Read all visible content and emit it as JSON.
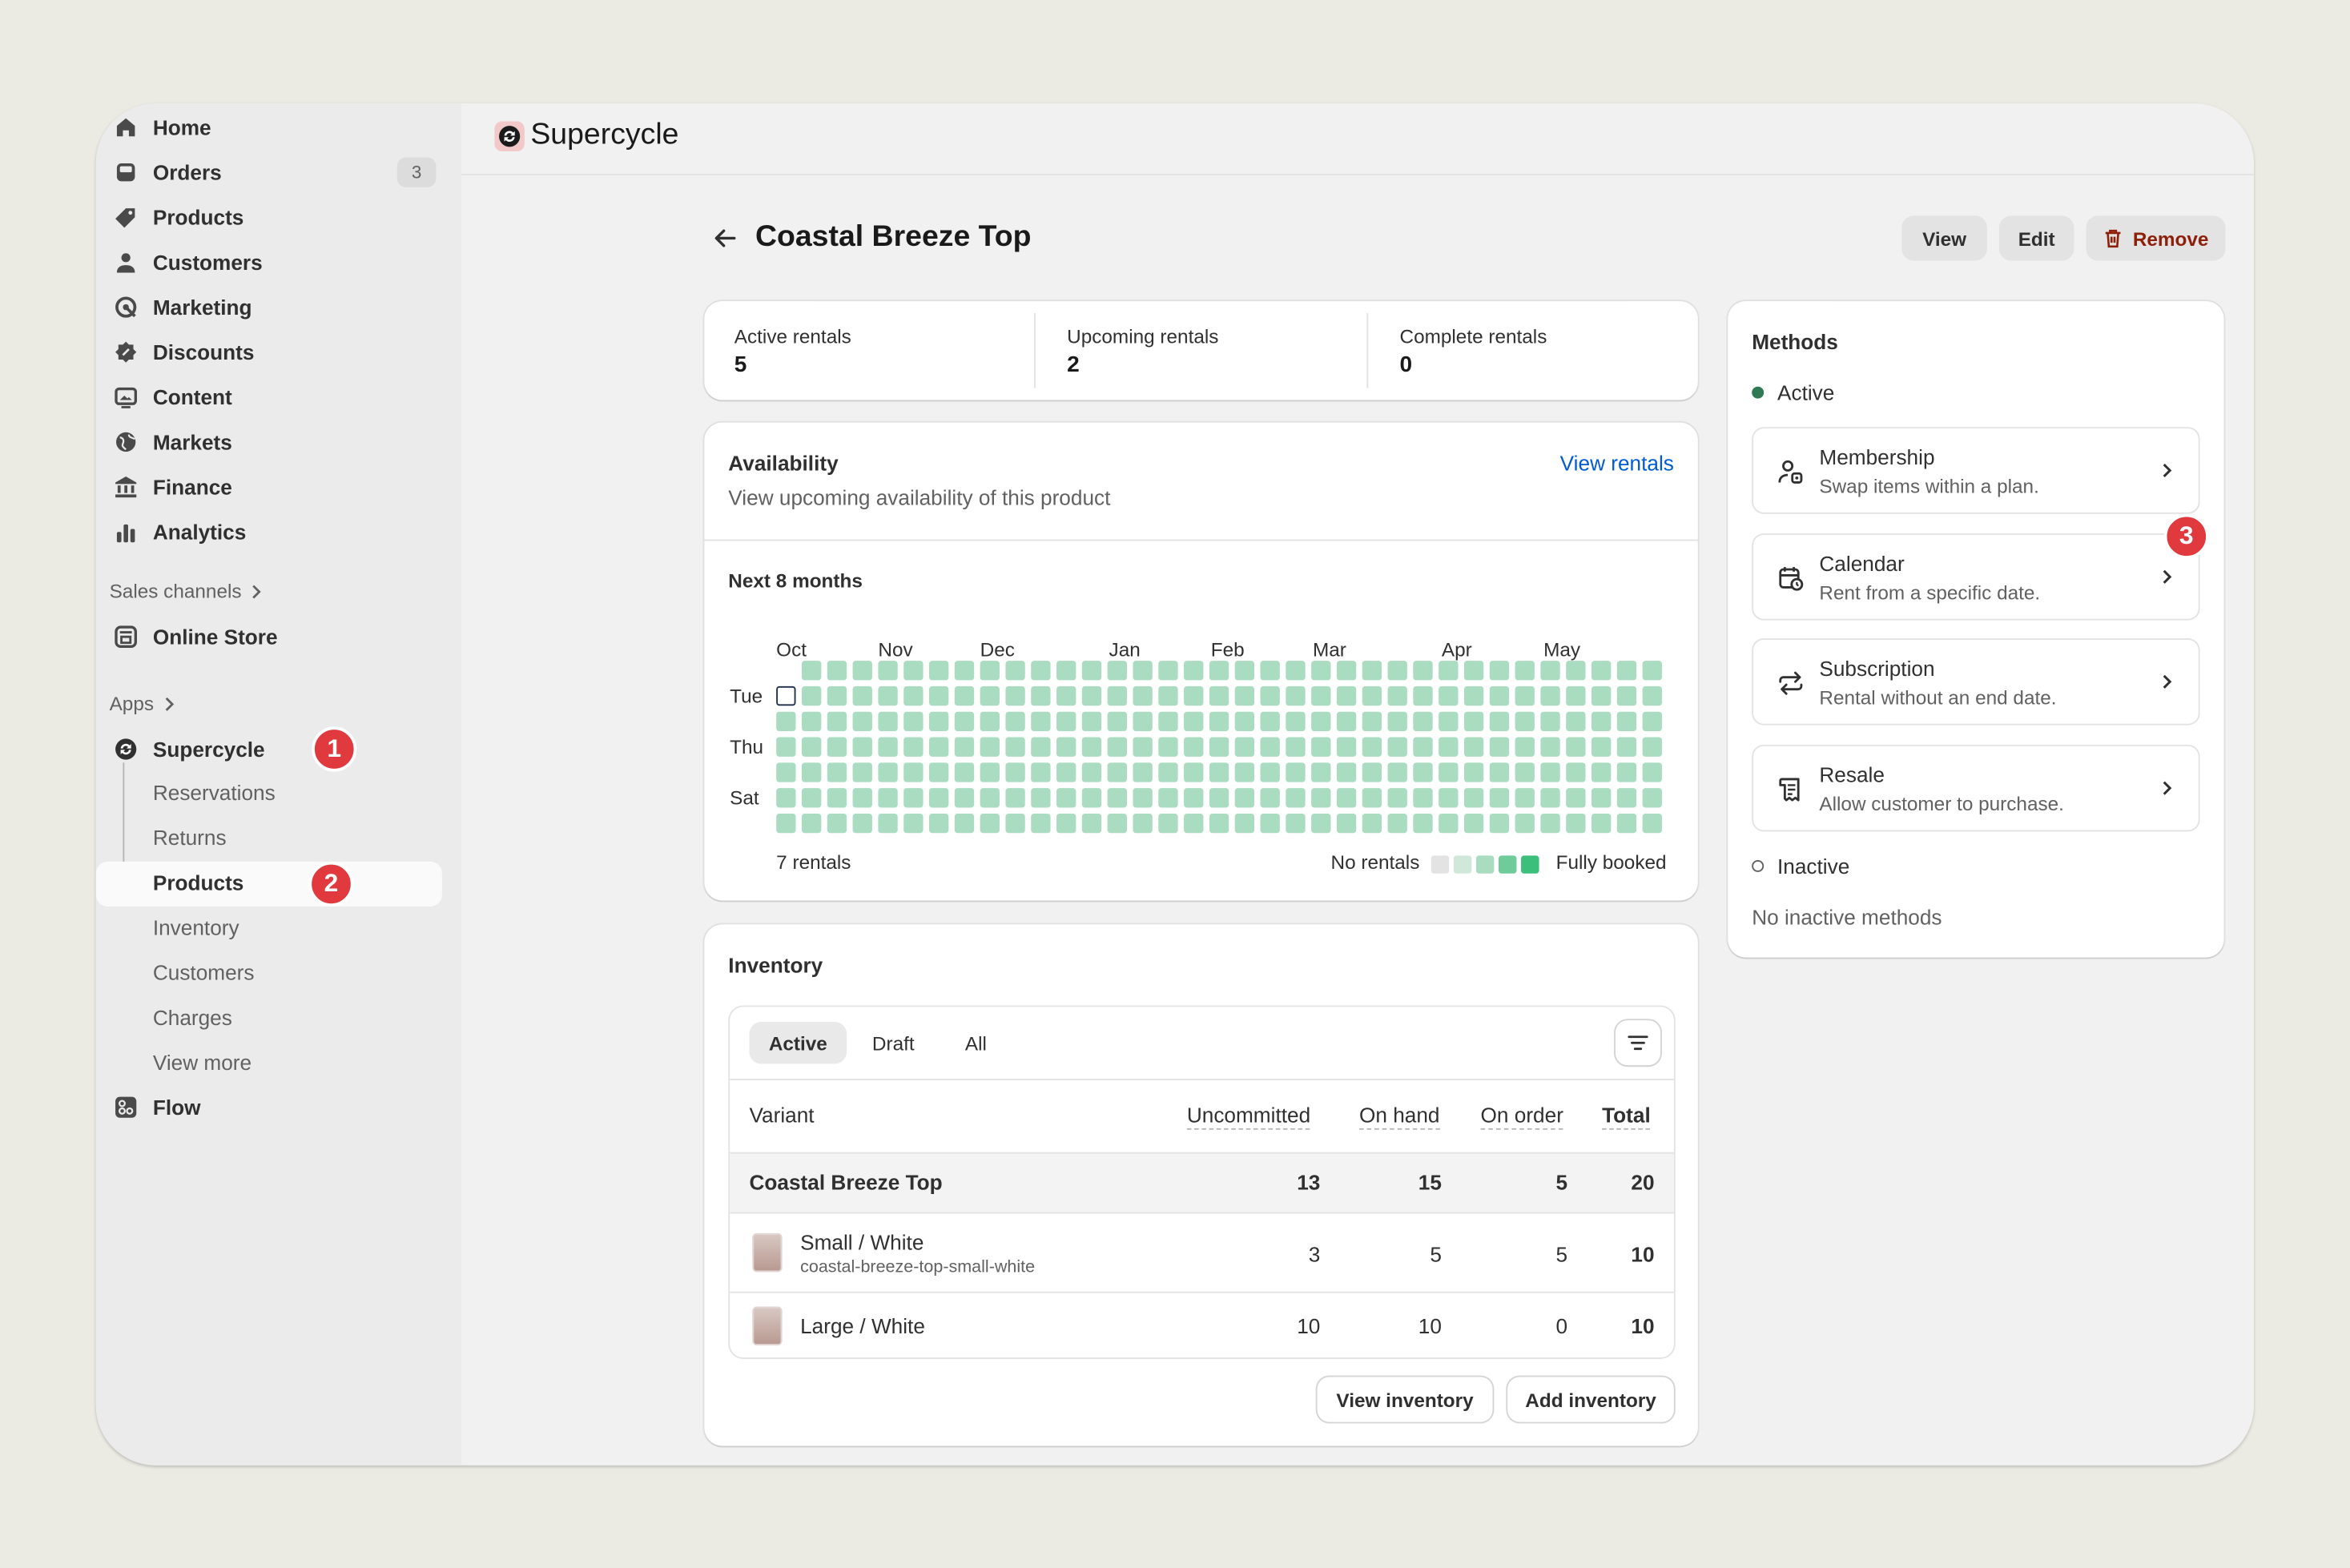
{
  "sidebar": {
    "nav": [
      {
        "label": "Home",
        "icon": "home-icon"
      },
      {
        "label": "Orders",
        "icon": "orders-icon",
        "badge": "3"
      },
      {
        "label": "Products",
        "icon": "tag-icon"
      },
      {
        "label": "Customers",
        "icon": "person-icon"
      },
      {
        "label": "Marketing",
        "icon": "target-icon"
      },
      {
        "label": "Discounts",
        "icon": "discount-icon"
      },
      {
        "label": "Content",
        "icon": "image-icon"
      },
      {
        "label": "Markets",
        "icon": "globe-icon"
      },
      {
        "label": "Finance",
        "icon": "bank-icon"
      },
      {
        "label": "Analytics",
        "icon": "bar-chart-icon"
      }
    ],
    "sales_channels_label": "Sales channels",
    "online_store_label": "Online Store",
    "apps_label": "Apps",
    "supercycle_label": "Supercycle",
    "sub_items": [
      "Reservations",
      "Returns",
      "Products",
      "Inventory",
      "Customers",
      "Charges",
      "View more"
    ],
    "flow_label": "Flow",
    "markers": [
      "1",
      "2",
      "3"
    ]
  },
  "topbar": {
    "app_name": "Supercycle"
  },
  "page": {
    "title": "Coastal Breeze Top",
    "buttons": {
      "view": "View",
      "edit": "Edit",
      "remove": "Remove"
    }
  },
  "stats": [
    {
      "label": "Active rentals",
      "value": "5"
    },
    {
      "label": "Upcoming rentals",
      "value": "2"
    },
    {
      "label": "Complete rentals",
      "value": "0"
    }
  ],
  "availability": {
    "title": "Availability",
    "subtitle": "View upcoming availability of this product",
    "link": "View rentals",
    "period": "Next 8 months",
    "months": [
      "Oct",
      "Nov",
      "Dec",
      "Jan",
      "Feb",
      "Mar",
      "Apr",
      "May"
    ],
    "days": [
      "Tue",
      "Thu",
      "Sat"
    ],
    "rentals_count": "7 rentals",
    "legend_low": "No rentals",
    "legend_high": "Fully booked",
    "legend_colors": [
      "#e3e3e3",
      "#cfe8da",
      "#a9dcc0",
      "#6fcc9a",
      "#3bbf7a"
    ]
  },
  "inventory": {
    "title": "Inventory",
    "tabs": [
      "Active",
      "Draft",
      "All"
    ],
    "columns": [
      "Variant",
      "Uncommitted",
      "On hand",
      "On order",
      "Total"
    ],
    "product_row": {
      "name": "Coastal Breeze Top",
      "uncommitted": "13",
      "on_hand": "15",
      "on_order": "5",
      "total": "20"
    },
    "variants": [
      {
        "name": "Small / White",
        "sku": "coastal-breeze-top-small-white",
        "uncommitted": "3",
        "on_hand": "5",
        "on_order": "5",
        "total": "10"
      },
      {
        "name": "Large / White",
        "sku": "",
        "uncommitted": "10",
        "on_hand": "10",
        "on_order": "0",
        "total": "10"
      }
    ],
    "view_button": "View inventory",
    "add_button": "Add inventory"
  },
  "methods": {
    "title": "Methods",
    "active_label": "Active",
    "items": [
      {
        "title": "Membership",
        "desc": "Swap items within a plan.",
        "icon": "membership-icon"
      },
      {
        "title": "Calendar",
        "desc": "Rent from a specific date.",
        "icon": "calendar-icon"
      },
      {
        "title": "Subscription",
        "desc": "Rental without an end date.",
        "icon": "repeat-icon"
      },
      {
        "title": "Resale",
        "desc": "Allow customer to purchase.",
        "icon": "receipt-icon"
      }
    ],
    "inactive_label": "Inactive",
    "no_inactive": "No inactive methods"
  },
  "colors": {
    "accent_green": "#2f7a55",
    "danger": "#8e1f0b",
    "link": "#005bd3",
    "marker": "#e0393e"
  }
}
